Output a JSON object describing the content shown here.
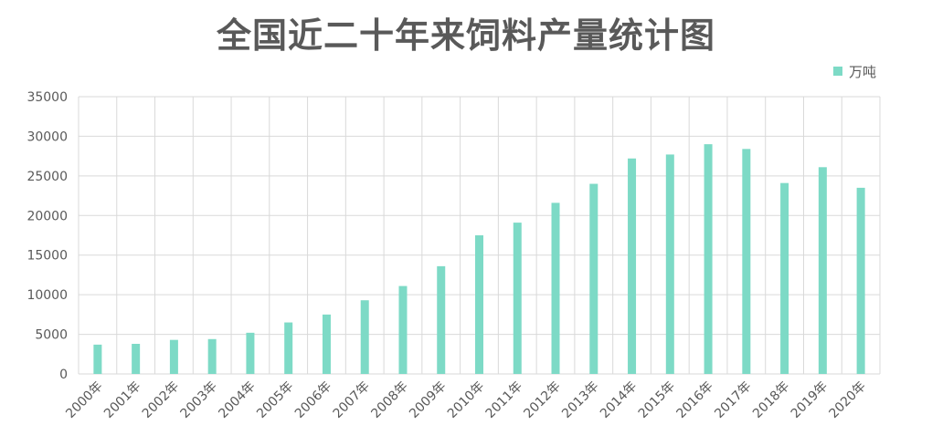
{
  "colors": {
    "bar": "#7ddac6",
    "grid": "#d9d9d9",
    "text": "#595959"
  },
  "chart_data": {
    "type": "bar",
    "title": "全国近二十年来饲料产量统计图",
    "legend": {
      "position": "top-right",
      "entries": [
        "万吨"
      ]
    },
    "grid": true,
    "categories": [
      "2000年",
      "2001年",
      "2002年",
      "2003年",
      "2004年",
      "2005年",
      "2006年",
      "2007年",
      "2008年",
      "2009年",
      "2010年",
      "2011年",
      "2012年",
      "2013年",
      "2014年",
      "2015年",
      "2016年",
      "2017年",
      "2018年",
      "2019年",
      "2020年"
    ],
    "series": [
      {
        "name": "万吨",
        "values": [
          3700,
          3800,
          4300,
          4400,
          5200,
          6500,
          7500,
          9300,
          11100,
          13600,
          17500,
          19100,
          21600,
          24000,
          27200,
          27700,
          29000,
          28400,
          24100,
          26100,
          23500
        ]
      }
    ],
    "y_ticks": [
      "0",
      "5000",
      "10000",
      "15000",
      "20000",
      "25000",
      "30000",
      "35000"
    ],
    "ylim": [
      0,
      35000
    ]
  }
}
